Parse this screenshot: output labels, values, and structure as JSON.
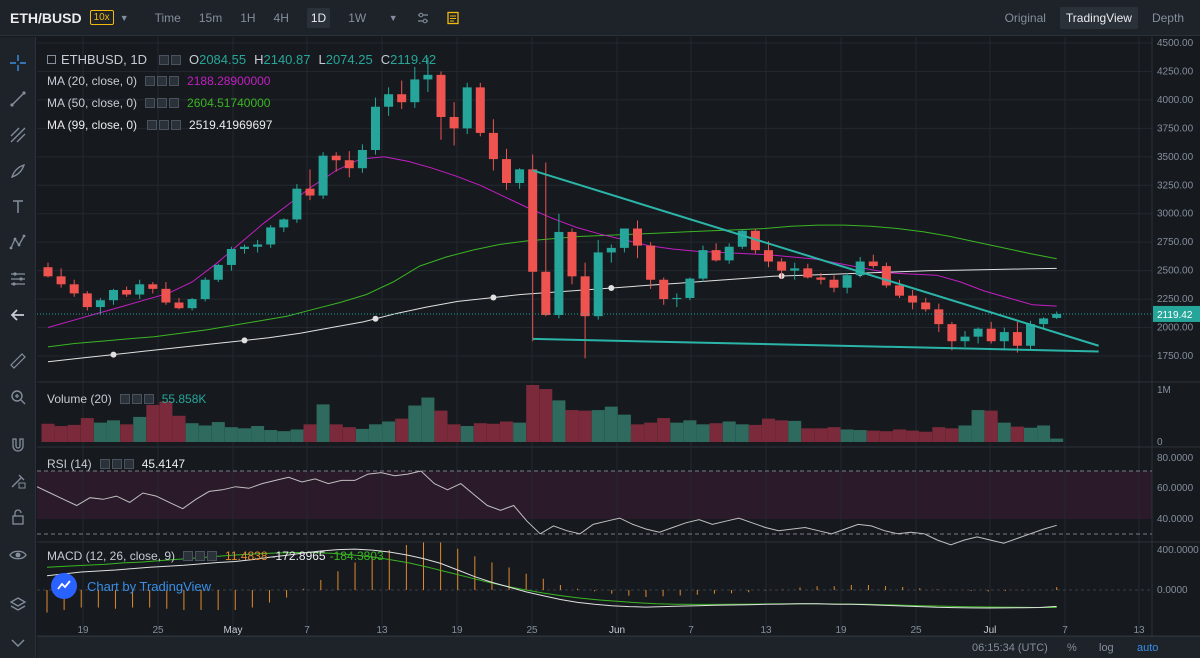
{
  "header": {
    "pair": "ETH/BUSD",
    "leverage": "10x",
    "timeframes": [
      "Time",
      "15m",
      "1H",
      "4H",
      "1D",
      "1W"
    ],
    "active_timeframe": "1D",
    "views": [
      "Original",
      "TradingView",
      "Depth"
    ],
    "active_view": "TradingView"
  },
  "legend": {
    "symbol": "ETHBUSD, 1D",
    "open_label": "O",
    "open": "2084.55",
    "high_label": "H",
    "high": "2140.87",
    "low_label": "L",
    "low": "2074.25",
    "close_label": "C",
    "close": "2119.42",
    "ma20_label": "MA (20, close, 0)",
    "ma20_value": "2188.28900000",
    "ma50_label": "MA (50, close, 0)",
    "ma50_value": "2604.51740000",
    "ma99_label": "MA (99, close, 0)",
    "ma99_value": "2519.41969697",
    "volume_label": "Volume (20)",
    "volume_value": "55.858K",
    "rsi_label": "RSI (14)",
    "rsi_value": "45.4147",
    "macd_label": "MACD (12, 26, close, 9)",
    "macd_v1": "11.4838",
    "macd_v2": "-172.8965",
    "macd_v3": "-184.3803",
    "branding": "Chart by TradingView"
  },
  "colors": {
    "up": "#26a69a",
    "down": "#ef5350",
    "ma20": "#c41ec4",
    "ma50": "#3bb523",
    "ma99": "#e0e0e0",
    "trend": "#2bb5a8",
    "rsi": "#c0c0c0",
    "macd_signal": "#3bb523",
    "macd_hist": "#e08a2c"
  },
  "price_axis": [
    "4500.00",
    "4250.00",
    "4000.00",
    "3750.00",
    "3500.00",
    "3250.00",
    "3000.00",
    "2750.00",
    "2500.00",
    "2250.00",
    "2000.00",
    "1750.00"
  ],
  "current_price_tag": "2119.42",
  "volume_axis": [
    "1M",
    "0"
  ],
  "rsi_axis": [
    "80.0000",
    "60.0000",
    "40.0000"
  ],
  "macd_axis": [
    "400.0000",
    "0.0000"
  ],
  "date_axis": [
    "19",
    "25",
    "May",
    "7",
    "13",
    "19",
    "25",
    "Jun",
    "7",
    "13",
    "19",
    "25",
    "Jul",
    "7",
    "13"
  ],
  "status": {
    "time": "06:15:34 (UTC)",
    "percent": "%",
    "log": "log",
    "auto": "auto"
  },
  "chart_data": {
    "type": "candlestick",
    "interval": "1D",
    "ylim": [
      1500,
      4500
    ],
    "candles": [
      [
        2530,
        2570,
        2440,
        2450
      ],
      [
        2450,
        2520,
        2350,
        2380
      ],
      [
        2380,
        2420,
        2270,
        2300
      ],
      [
        2300,
        2320,
        2150,
        2180
      ],
      [
        2180,
        2260,
        2110,
        2240
      ],
      [
        2240,
        2340,
        2200,
        2330
      ],
      [
        2330,
        2360,
        2270,
        2290
      ],
      [
        2290,
        2420,
        2250,
        2380
      ],
      [
        2380,
        2400,
        2300,
        2340
      ],
      [
        2340,
        2400,
        2200,
        2220
      ],
      [
        2220,
        2260,
        2160,
        2170
      ],
      [
        2170,
        2260,
        2150,
        2250
      ],
      [
        2250,
        2440,
        2230,
        2420
      ],
      [
        2420,
        2560,
        2400,
        2550
      ],
      [
        2550,
        2710,
        2500,
        2690
      ],
      [
        2690,
        2730,
        2650,
        2710
      ],
      [
        2710,
        2770,
        2660,
        2730
      ],
      [
        2730,
        2900,
        2700,
        2880
      ],
      [
        2880,
        2960,
        2840,
        2950
      ],
      [
        2950,
        3260,
        2920,
        3220
      ],
      [
        3220,
        3390,
        3120,
        3160
      ],
      [
        3160,
        3540,
        3130,
        3510
      ],
      [
        3510,
        3540,
        3370,
        3470
      ],
      [
        3470,
        3550,
        3320,
        3400
      ],
      [
        3400,
        3610,
        3360,
        3560
      ],
      [
        3560,
        4020,
        3520,
        3940
      ],
      [
        3940,
        4110,
        3860,
        4050
      ],
      [
        4050,
        4170,
        3920,
        3980
      ],
      [
        3980,
        4290,
        3930,
        4180
      ],
      [
        4180,
        4370,
        4070,
        4220
      ],
      [
        4220,
        4250,
        3650,
        3850
      ],
      [
        3850,
        3980,
        3600,
        3750
      ],
      [
        3750,
        4150,
        3700,
        4110
      ],
      [
        4110,
        4150,
        3680,
        3710
      ],
      [
        3710,
        3830,
        3380,
        3480
      ],
      [
        3480,
        3570,
        3210,
        3270
      ],
      [
        3270,
        3400,
        3220,
        3390
      ],
      [
        3390,
        3520,
        1880,
        2490
      ],
      [
        2490,
        3450,
        2100,
        2110
      ],
      [
        2110,
        3000,
        2080,
        2840
      ],
      [
        2840,
        2870,
        2380,
        2450
      ],
      [
        2450,
        2570,
        1730,
        2100
      ],
      [
        2100,
        2770,
        2070,
        2660
      ],
      [
        2660,
        2730,
        2570,
        2700
      ],
      [
        2700,
        2870,
        2660,
        2870
      ],
      [
        2870,
        2940,
        2610,
        2720
      ],
      [
        2720,
        2750,
        2340,
        2420
      ],
      [
        2420,
        2440,
        2200,
        2250
      ],
      [
        2250,
        2300,
        2180,
        2260
      ],
      [
        2260,
        2440,
        2240,
        2430
      ],
      [
        2430,
        2720,
        2400,
        2680
      ],
      [
        2680,
        2740,
        2580,
        2590
      ],
      [
        2590,
        2740,
        2560,
        2710
      ],
      [
        2710,
        2860,
        2690,
        2850
      ],
      [
        2850,
        2870,
        2650,
        2680
      ],
      [
        2680,
        2760,
        2530,
        2580
      ],
      [
        2580,
        2610,
        2430,
        2500
      ],
      [
        2500,
        2570,
        2420,
        2520
      ],
      [
        2520,
        2560,
        2430,
        2440
      ],
      [
        2440,
        2480,
        2380,
        2420
      ],
      [
        2420,
        2460,
        2310,
        2350
      ],
      [
        2350,
        2480,
        2300,
        2460
      ],
      [
        2460,
        2620,
        2440,
        2580
      ],
      [
        2580,
        2640,
        2520,
        2540
      ],
      [
        2540,
        2570,
        2350,
        2370
      ],
      [
        2370,
        2420,
        2260,
        2280
      ],
      [
        2280,
        2330,
        2160,
        2220
      ],
      [
        2220,
        2260,
        2140,
        2160
      ],
      [
        2160,
        2210,
        1960,
        2030
      ],
      [
        2030,
        2050,
        1800,
        1880
      ],
      [
        1880,
        1970,
        1830,
        1920
      ],
      [
        1920,
        2000,
        1860,
        1990
      ],
      [
        1990,
        2050,
        1860,
        1880
      ],
      [
        1880,
        2000,
        1800,
        1960
      ],
      [
        1960,
        2050,
        1780,
        1840
      ],
      [
        1840,
        2060,
        1810,
        2030
      ],
      [
        2030,
        2090,
        1990,
        2080
      ],
      [
        2084.55,
        2140.87,
        2074.25,
        2119.42
      ]
    ],
    "ma20": [
      2000,
      2060,
      2120,
      2180,
      2240,
      2300,
      2400,
      2560,
      2740,
      2920,
      3080,
      3240,
      3380,
      3480,
      3500,
      3460,
      3400,
      3330,
      3250,
      3150,
      3050,
      2960,
      2880,
      2820,
      2770,
      2720,
      2690,
      2670,
      2660,
      2650,
      2640,
      2620,
      2600,
      2560,
      2520,
      2480,
      2470,
      2460,
      2400,
      2320,
      2260,
      2200,
      2188.29
    ],
    "ma50": [
      1830,
      1860,
      1880,
      1900,
      1920,
      1950,
      1980,
      2020,
      2060,
      2100,
      2160,
      2220,
      2290,
      2400,
      2540,
      2620,
      2680,
      2730,
      2760,
      2780,
      2800,
      2810,
      2820,
      2830,
      2840,
      2850,
      2860,
      2870,
      2890,
      2900,
      2900,
      2890,
      2870,
      2840,
      2800,
      2750,
      2700,
      2650,
      2604.52
    ],
    "ma99": [
      1700,
      1730,
      1760,
      1790,
      1820,
      1850,
      1880,
      1910,
      1950,
      2000,
      2050,
      2120,
      2180,
      2230,
      2260,
      2290,
      2310,
      2330,
      2350,
      2370,
      2390,
      2410,
      2430,
      2450,
      2460,
      2470,
      2480,
      2490,
      2500,
      2505,
      2510,
      2515,
      2519.42
    ],
    "trendlines": [
      {
        "from": [
          "2021-05-19",
          3380
        ],
        "to": [
          "2021-07-08",
          1840
        ]
      },
      {
        "from": [
          "2021-05-19",
          1900
        ],
        "to": [
          "2021-07-08",
          1790
        ]
      }
    ],
    "rsi": [
      70,
      66,
      62,
      58,
      63,
      62,
      64,
      60,
      66,
      64,
      60,
      56,
      62,
      67,
      68,
      70,
      69,
      72,
      74,
      76,
      73,
      75,
      72,
      74,
      74,
      78,
      79,
      77,
      78,
      80,
      72,
      68,
      72,
      65,
      58,
      55,
      58,
      48,
      40,
      45,
      42,
      40,
      46,
      48,
      50,
      46,
      43,
      41,
      44,
      47,
      49,
      46,
      48,
      50,
      47,
      44,
      42,
      43,
      44,
      42,
      40,
      43,
      46,
      45,
      42,
      40,
      41,
      40,
      36,
      33,
      36,
      38,
      36,
      34,
      37,
      40,
      43,
      45.41
    ],
    "volume": [
      0.32,
      0.28,
      0.3,
      0.42,
      0.34,
      0.38,
      0.31,
      0.44,
      0.65,
      0.71,
      0.46,
      0.33,
      0.29,
      0.35,
      0.26,
      0.24,
      0.28,
      0.21,
      0.19,
      0.22,
      0.31,
      0.66,
      0.31,
      0.26,
      0.23,
      0.31,
      0.36,
      0.41,
      0.64,
      0.78,
      0.55,
      0.31,
      0.28,
      0.33,
      0.32,
      0.36,
      0.34,
      1.0,
      0.93,
      0.73,
      0.56,
      0.55,
      0.56,
      0.62,
      0.48,
      0.31,
      0.34,
      0.42,
      0.34,
      0.38,
      0.31,
      0.33,
      0.36,
      0.31,
      0.3,
      0.41,
      0.38,
      0.37,
      0.24,
      0.24,
      0.26,
      0.22,
      0.21,
      0.2,
      0.19,
      0.22,
      0.2,
      0.18,
      0.26,
      0.24,
      0.29,
      0.56,
      0.55,
      0.34,
      0.27,
      0.25,
      0.29,
      0.06
    ],
    "macd_line": [
      150,
      170,
      190,
      200,
      210,
      225,
      240,
      250,
      260,
      275,
      290,
      300,
      320,
      345,
      365,
      390,
      410,
      425,
      430,
      420,
      400,
      370,
      330,
      280,
      210,
      140,
      80,
      30,
      -20,
      -60,
      -100,
      -130,
      -150,
      -165,
      -175,
      -180,
      -175,
      -170,
      -165,
      -160,
      -158,
      -155,
      -150,
      -148,
      -145,
      -145,
      -150,
      -150,
      -155,
      -162,
      -168,
      -175,
      -182,
      -185,
      -188,
      -190,
      -188,
      -186,
      -184,
      -172.9
    ],
    "macd_signal": [
      240,
      250,
      260,
      270,
      285,
      295,
      310,
      325,
      340,
      355,
      370,
      380,
      390,
      395,
      395,
      385,
      370,
      350,
      320,
      285,
      240,
      190,
      140,
      90,
      45,
      5,
      -30,
      -60,
      -85,
      -105,
      -120,
      -135,
      -145,
      -150,
      -152,
      -152,
      -150,
      -148,
      -146,
      -145,
      -145,
      -146,
      -148,
      -150,
      -155,
      -160,
      -165,
      -170,
      -175,
      -178,
      -180,
      -182,
      -184,
      -184.38
    ]
  }
}
